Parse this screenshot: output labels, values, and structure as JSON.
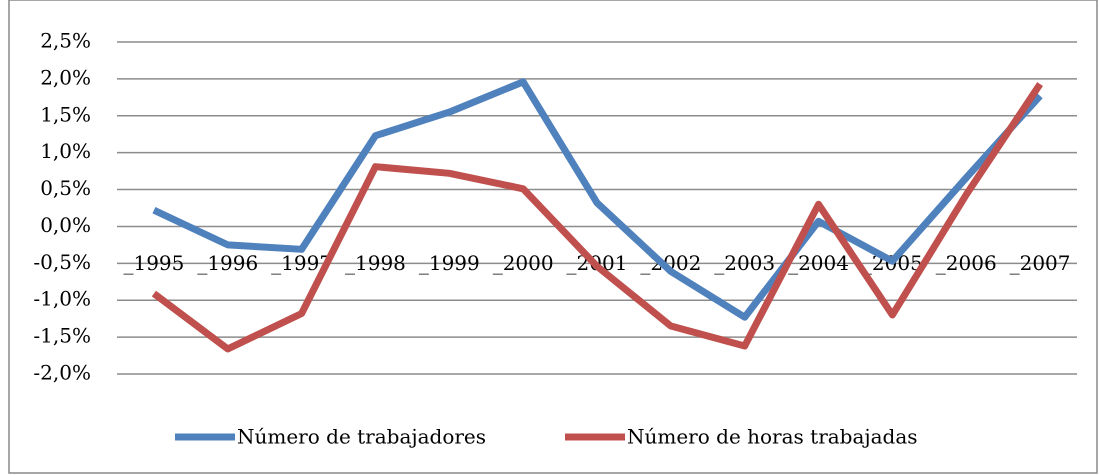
{
  "chart_data": {
    "type": "line",
    "categories": [
      "_1995",
      "_1996",
      "_1997",
      "_1998",
      "_1999",
      "_2000",
      "_2001",
      "_2002",
      "_2003",
      "_2004",
      "_2005",
      "_2006",
      "_2007"
    ],
    "series": [
      {
        "name": "Número de trabajadores",
        "color": "#4f81bd",
        "values": [
          0.22,
          -0.25,
          -0.31,
          1.23,
          1.55,
          1.96,
          0.32,
          -0.61,
          -1.23,
          0.07,
          -0.47,
          0.66,
          1.77
        ]
      },
      {
        "name": "Número de horas trabajadas",
        "color": "#c0504d",
        "values": [
          -0.91,
          -1.66,
          -1.18,
          0.81,
          0.72,
          0.51,
          -0.54,
          -1.35,
          -1.62,
          0.3,
          -1.2,
          0.43,
          1.93
        ]
      }
    ],
    "ylim": [
      -2.0,
      2.5
    ],
    "yticks": [
      {
        "value": 2.5,
        "label": "2,5%"
      },
      {
        "value": 2.0,
        "label": "2,0%"
      },
      {
        "value": 1.5,
        "label": "1,5%"
      },
      {
        "value": 1.0,
        "label": "1,0%"
      },
      {
        "value": 0.5,
        "label": "0,5%"
      },
      {
        "value": 0.0,
        "label": "0,0%"
      },
      {
        "value": -0.5,
        "label": "-0,5%"
      },
      {
        "value": -1.0,
        "label": "-1,0%"
      },
      {
        "value": -1.5,
        "label": "-1,5%"
      },
      {
        "value": -2.0,
        "label": "-2,0%"
      }
    ],
    "grid": true,
    "legend": "bottom"
  }
}
